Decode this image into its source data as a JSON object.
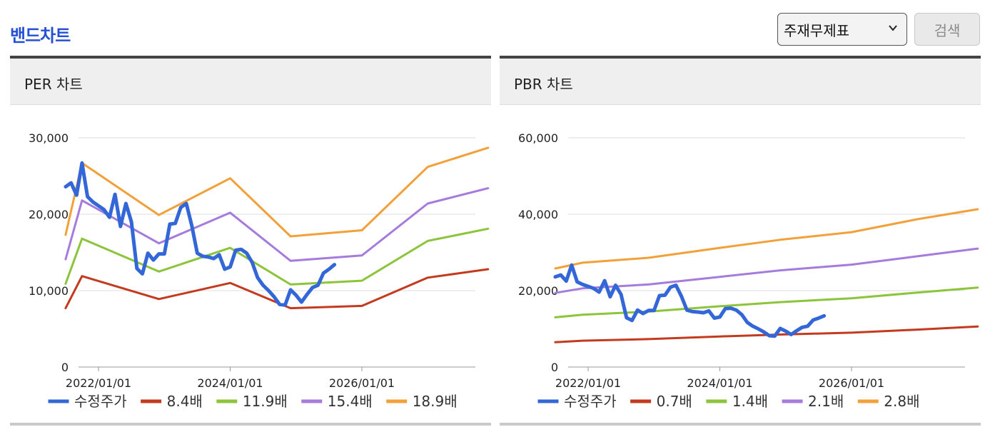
{
  "header": {
    "title": "밴드차트",
    "select_value": "주재무제표",
    "search_label": "검색"
  },
  "chart_data": [
    {
      "type": "line",
      "title": "PER 차트",
      "ylim": [
        0,
        30000
      ],
      "yticks": [
        "30,000",
        "20,000",
        "10,000",
        "0"
      ],
      "xticks": [
        "2022/01/01",
        "2024/01/01",
        "2026/01/01"
      ],
      "grid": true,
      "legend_position": "bottom",
      "series": [
        {
          "name": "수정주가",
          "color": "#3366d6",
          "points": [
            [
              "2021/07",
              23600
            ],
            [
              "2021/08",
              24100
            ],
            [
              "2021/09",
              22500
            ],
            [
              "2021/10",
              26700
            ],
            [
              "2021/11",
              22300
            ],
            [
              "2021/12",
              21600
            ],
            [
              "2022/02",
              20600
            ],
            [
              "2022/03",
              19600
            ],
            [
              "2022/04",
              22600
            ],
            [
              "2022/05",
              18400
            ],
            [
              "2022/06",
              21400
            ],
            [
              "2022/07",
              19000
            ],
            [
              "2022/08",
              12900
            ],
            [
              "2022/09",
              12200
            ],
            [
              "2022/10",
              14900
            ],
            [
              "2022/11",
              14000
            ],
            [
              "2022/12",
              14800
            ],
            [
              "2023/01",
              14800
            ],
            [
              "2023/02",
              18700
            ],
            [
              "2023/03",
              18800
            ],
            [
              "2023/04",
              20900
            ],
            [
              "2023/05",
              21400
            ],
            [
              "2023/06",
              18500
            ],
            [
              "2023/07",
              14900
            ],
            [
              "2023/08",
              14500
            ],
            [
              "2023/09",
              14400
            ],
            [
              "2023/10",
              14200
            ],
            [
              "2023/11",
              14700
            ],
            [
              "2023/12",
              12800
            ],
            [
              "2024/01",
              13100
            ],
            [
              "2024/02",
              15300
            ],
            [
              "2024/03",
              15400
            ],
            [
              "2024/04",
              14900
            ],
            [
              "2024/05",
              13700
            ],
            [
              "2024/06",
              11700
            ],
            [
              "2024/07",
              10700
            ],
            [
              "2024/08",
              10000
            ],
            [
              "2024/09",
              9200
            ],
            [
              "2024/10",
              8200
            ],
            [
              "2024/11",
              8100
            ],
            [
              "2024/12",
              10100
            ],
            [
              "2025/01",
              9400
            ],
            [
              "2025/02",
              8500
            ],
            [
              "2025/03",
              9500
            ],
            [
              "2025/04",
              10400
            ],
            [
              "2025/05",
              10700
            ],
            [
              "2025/06",
              12300
            ],
            [
              "2025/07",
              12800
            ],
            [
              "2025/08",
              13400
            ]
          ]
        },
        {
          "name": "8.4배",
          "color": "#c33b1f",
          "points": [
            [
              "2021/07",
              7700
            ],
            [
              "2021/10",
              11900
            ],
            [
              "2022/12",
              8900
            ],
            [
              "2024/01",
              11000
            ],
            [
              "2024/12",
              7700
            ],
            [
              "2026/01",
              8000
            ],
            [
              "2027/01",
              11700
            ],
            [
              "2027/12",
              12800
            ]
          ]
        },
        {
          "name": "11.9배",
          "color": "#8cc43c",
          "points": [
            [
              "2021/07",
              10900
            ],
            [
              "2021/10",
              16800
            ],
            [
              "2022/12",
              12500
            ],
            [
              "2024/01",
              15600
            ],
            [
              "2024/12",
              10800
            ],
            [
              "2026/01",
              11300
            ],
            [
              "2027/01",
              16500
            ],
            [
              "2027/12",
              18100
            ]
          ]
        },
        {
          "name": "15.4배",
          "color": "#a57bdb",
          "points": [
            [
              "2021/07",
              14100
            ],
            [
              "2021/10",
              21800
            ],
            [
              "2022/12",
              16200
            ],
            [
              "2024/01",
              20200
            ],
            [
              "2024/12",
              13900
            ],
            [
              "2026/01",
              14600
            ],
            [
              "2027/01",
              21400
            ],
            [
              "2027/12",
              23400
            ]
          ]
        },
        {
          "name": "18.9배",
          "color": "#f2a03a",
          "points": [
            [
              "2021/07",
              17300
            ],
            [
              "2021/10",
              26700
            ],
            [
              "2022/12",
              19900
            ],
            [
              "2024/01",
              24700
            ],
            [
              "2024/12",
              17100
            ],
            [
              "2026/01",
              17900
            ],
            [
              "2027/01",
              26200
            ],
            [
              "2027/12",
              28700
            ]
          ]
        }
      ]
    },
    {
      "type": "line",
      "title": "PBR 차트",
      "ylim": [
        0,
        60000
      ],
      "yticks": [
        "60,000",
        "40,000",
        "20,000",
        "0"
      ],
      "xticks": [
        "2022/01/01",
        "2024/01/01",
        "2026/01/01"
      ],
      "grid": true,
      "legend_position": "bottom",
      "series": [
        {
          "name": "수정주가",
          "color": "#3366d6",
          "points": [
            [
              "2021/07",
              23600
            ],
            [
              "2021/08",
              24100
            ],
            [
              "2021/09",
              22500
            ],
            [
              "2021/10",
              26700
            ],
            [
              "2021/11",
              22300
            ],
            [
              "2021/12",
              21600
            ],
            [
              "2022/02",
              20600
            ],
            [
              "2022/03",
              19600
            ],
            [
              "2022/04",
              22600
            ],
            [
              "2022/05",
              18400
            ],
            [
              "2022/06",
              21400
            ],
            [
              "2022/07",
              19000
            ],
            [
              "2022/08",
              12900
            ],
            [
              "2022/09",
              12200
            ],
            [
              "2022/10",
              14900
            ],
            [
              "2022/11",
              14000
            ],
            [
              "2022/12",
              14800
            ],
            [
              "2023/01",
              14800
            ],
            [
              "2023/02",
              18700
            ],
            [
              "2023/03",
              18800
            ],
            [
              "2023/04",
              20900
            ],
            [
              "2023/05",
              21400
            ],
            [
              "2023/06",
              18500
            ],
            [
              "2023/07",
              14900
            ],
            [
              "2023/08",
              14500
            ],
            [
              "2023/09",
              14400
            ],
            [
              "2023/10",
              14200
            ],
            [
              "2023/11",
              14700
            ],
            [
              "2023/12",
              12800
            ],
            [
              "2024/01",
              13100
            ],
            [
              "2024/02",
              15300
            ],
            [
              "2024/03",
              15400
            ],
            [
              "2024/04",
              14900
            ],
            [
              "2024/05",
              13700
            ],
            [
              "2024/06",
              11700
            ],
            [
              "2024/07",
              10700
            ],
            [
              "2024/08",
              10000
            ],
            [
              "2024/09",
              9200
            ],
            [
              "2024/10",
              8200
            ],
            [
              "2024/11",
              8100
            ],
            [
              "2024/12",
              10100
            ],
            [
              "2025/01",
              9400
            ],
            [
              "2025/02",
              8500
            ],
            [
              "2025/03",
              9500
            ],
            [
              "2025/04",
              10400
            ],
            [
              "2025/05",
              10700
            ],
            [
              "2025/06",
              12300
            ],
            [
              "2025/07",
              12800
            ],
            [
              "2025/08",
              13400
            ]
          ]
        },
        {
          "name": "0.7배",
          "color": "#c33b1f",
          "points": [
            [
              "2021/07",
              6500
            ],
            [
              "2021/12",
              6900
            ],
            [
              "2022/12",
              7300
            ],
            [
              "2024/01",
              8000
            ],
            [
              "2024/12",
              8500
            ],
            [
              "2026/01",
              9000
            ],
            [
              "2027/01",
              9800
            ],
            [
              "2027/12",
              10600
            ]
          ]
        },
        {
          "name": "1.4배",
          "color": "#8cc43c",
          "points": [
            [
              "2021/07",
              13000
            ],
            [
              "2021/12",
              13700
            ],
            [
              "2022/12",
              14500
            ],
            [
              "2024/01",
              15900
            ],
            [
              "2024/12",
              17000
            ],
            [
              "2026/01",
              18000
            ],
            [
              "2027/01",
              19500
            ],
            [
              "2027/12",
              20800
            ]
          ]
        },
        {
          "name": "2.1배",
          "color": "#a57bdb",
          "points": [
            [
              "2021/07",
              19400
            ],
            [
              "2021/12",
              20600
            ],
            [
              "2022/12",
              21600
            ],
            [
              "2024/01",
              23600
            ],
            [
              "2024/12",
              25300
            ],
            [
              "2026/01",
              26800
            ],
            [
              "2027/01",
              29000
            ],
            [
              "2027/12",
              31000
            ]
          ]
        },
        {
          "name": "2.8배",
          "color": "#f2a03a",
          "points": [
            [
              "2021/07",
              25800
            ],
            [
              "2021/12",
              27300
            ],
            [
              "2022/12",
              28600
            ],
            [
              "2024/01",
              31200
            ],
            [
              "2024/12",
              33300
            ],
            [
              "2026/01",
              35300
            ],
            [
              "2027/01",
              38700
            ],
            [
              "2027/12",
              41300
            ]
          ]
        }
      ]
    }
  ]
}
